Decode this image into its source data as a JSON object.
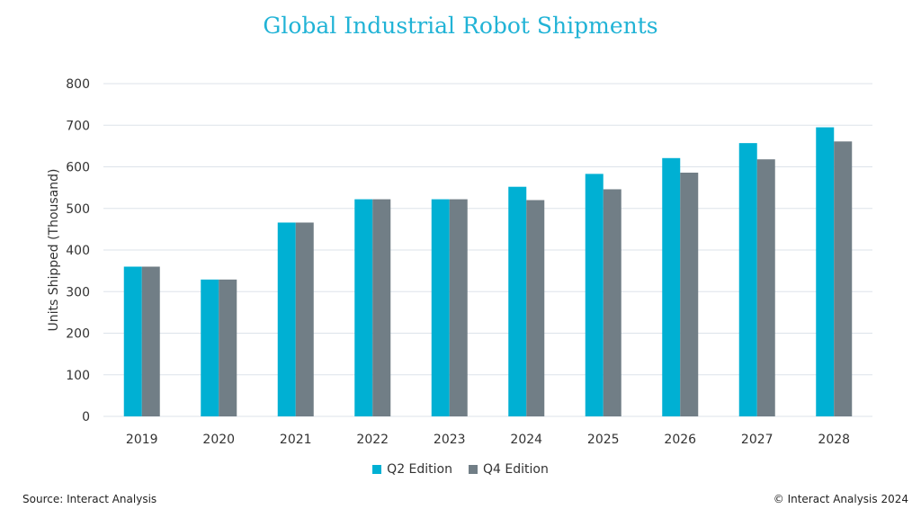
{
  "chart_data": {
    "type": "bar",
    "title": "Global Industrial Robot Shipments",
    "xlabel": "",
    "ylabel": "Units Shipped (Thousand)",
    "ylim": [
      0,
      800
    ],
    "yticks": [
      0,
      100,
      200,
      300,
      400,
      500,
      600,
      700,
      800
    ],
    "grid": true,
    "legend_position": "bottom",
    "categories": [
      "2019",
      "2020",
      "2021",
      "2022",
      "2023",
      "2024",
      "2025",
      "2026",
      "2027",
      "2028"
    ],
    "series": [
      {
        "name": "Q2 Edition",
        "color": "#00b0d3",
        "values": [
          360,
          329,
          466,
          522,
          522,
          552,
          583,
          621,
          657,
          695
        ]
      },
      {
        "name": "Q4 Edition",
        "color": "#717e86",
        "values": [
          360,
          329,
          466,
          522,
          522,
          520,
          546,
          586,
          618,
          661
        ]
      }
    ]
  },
  "footer": {
    "source": "Source: Interact Analysis",
    "copyright": "© Interact Analysis 2024"
  }
}
